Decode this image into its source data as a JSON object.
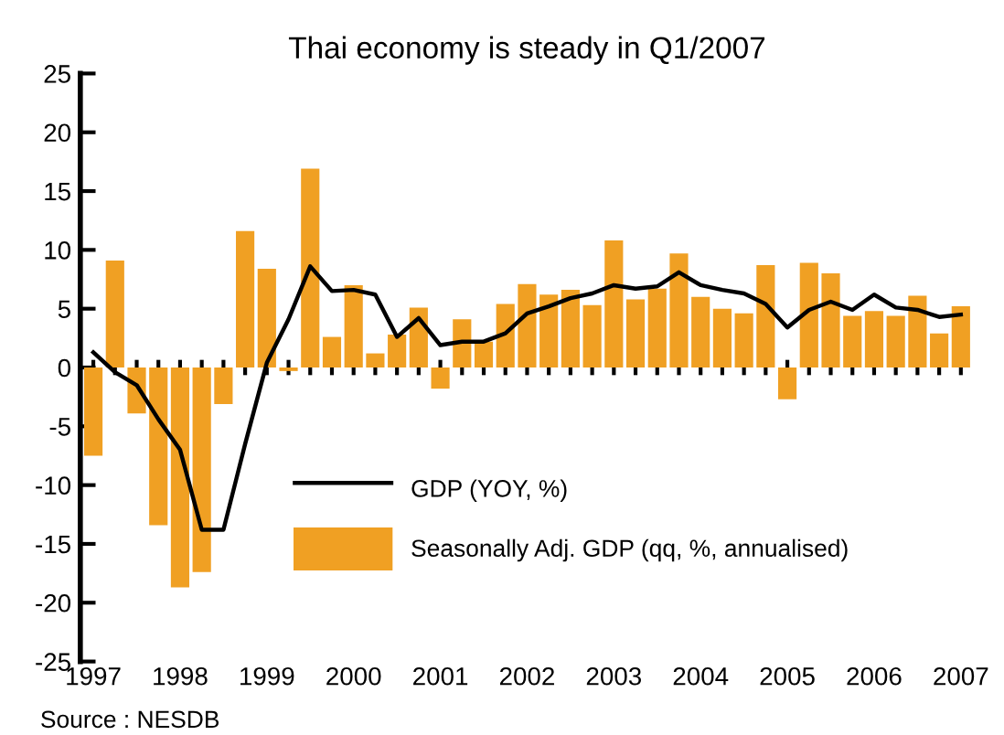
{
  "chart_data": {
    "type": "bar",
    "title": "Thai economy is steady in Q1/2007",
    "categories": [
      "1997",
      null,
      null,
      null,
      "1998",
      null,
      null,
      null,
      "1999",
      null,
      null,
      null,
      "2000",
      null,
      null,
      null,
      "2001",
      null,
      null,
      null,
      "2002",
      null,
      null,
      null,
      "2003",
      null,
      null,
      null,
      "2004",
      null,
      null,
      null,
      "2005",
      null,
      null,
      null,
      "2006",
      null,
      null,
      null,
      "2007"
    ],
    "series": [
      {
        "name": "GDP (YOY, %)",
        "type": "line",
        "color": "#000000",
        "values": [
          1.3,
          -0.4,
          -1.5,
          -4.4,
          -7.0,
          -13.8,
          -13.8,
          -6.5,
          0.4,
          4.1,
          8.6,
          6.5,
          6.6,
          6.2,
          2.6,
          4.2,
          1.9,
          2.2,
          2.2,
          2.9,
          4.6,
          5.2,
          5.9,
          6.3,
          7.0,
          6.7,
          6.9,
          8.1,
          7.0,
          6.6,
          6.3,
          5.4,
          3.4,
          4.9,
          5.6,
          4.9,
          6.2,
          5.1,
          4.9,
          4.3,
          4.5
        ]
      },
      {
        "name": "Seasonally Adj. GDP (qq, %, annualised)",
        "color": "#f0a023",
        "values": [
          -7.5,
          9.1,
          -3.9,
          -13.4,
          -18.7,
          -17.4,
          -3.1,
          11.6,
          8.4,
          -0.3,
          16.9,
          2.6,
          7.0,
          1.2,
          2.8,
          5.1,
          -1.8,
          4.1,
          2.2,
          5.4,
          7.1,
          6.2,
          6.6,
          5.3,
          10.8,
          5.8,
          6.7,
          9.7,
          6.0,
          5.0,
          4.6,
          8.7,
          -2.7,
          8.9,
          8.0,
          4.4,
          4.8,
          4.4,
          6.1,
          2.9,
          5.2
        ]
      }
    ],
    "ylim": [
      -25,
      25
    ],
    "yticks": [
      -25,
      -20,
      -15,
      -10,
      -5,
      0,
      5,
      10,
      15,
      20,
      25
    ],
    "grid": false,
    "legend": "bottom",
    "annotations": [
      "Source : NESDB"
    ]
  }
}
